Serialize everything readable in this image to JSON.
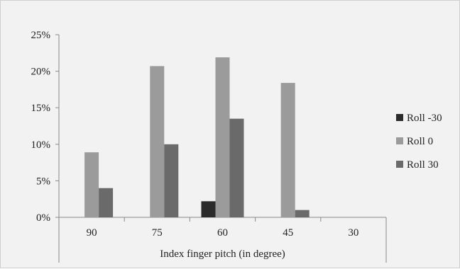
{
  "chart_data": {
    "type": "bar",
    "title": "",
    "xlabel": "Index finger pitch (in degree)",
    "ylabel": "",
    "categories": [
      "90",
      "75",
      "60",
      "45",
      "30"
    ],
    "series": [
      {
        "name": "Roll -30",
        "color": "#2b2b2b",
        "values": [
          0,
          0,
          2.2,
          0,
          0
        ]
      },
      {
        "name": "Roll 0",
        "color": "#9b9b9b",
        "values": [
          8.9,
          20.7,
          21.9,
          18.4,
          0
        ]
      },
      {
        "name": "Roll 30",
        "color": "#6a6a6a",
        "values": [
          4.0,
          10.0,
          13.5,
          1.0,
          0
        ]
      }
    ],
    "ylim": [
      0,
      25
    ],
    "yticks": [
      0,
      5,
      10,
      15,
      20,
      25
    ],
    "ytick_labels": [
      "0%",
      "5%",
      "10%",
      "15%",
      "20%",
      "25%"
    ],
    "grid": false,
    "legend_position": "right"
  }
}
